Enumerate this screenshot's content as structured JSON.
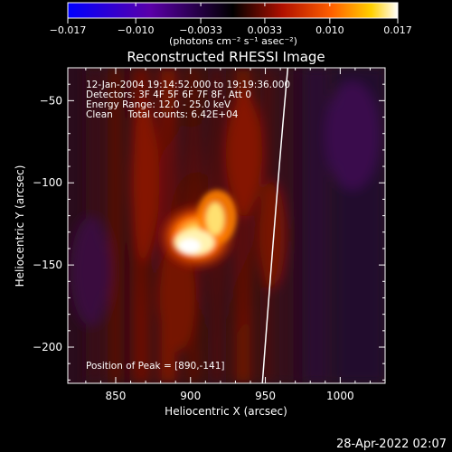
{
  "colorbar": {
    "tick_labels": [
      "−0.017",
      "−0.010",
      "−0.0033",
      "0.0033",
      "0.010",
      "0.017"
    ],
    "ticks": [
      -0.017,
      -0.01,
      -0.0033,
      0.0033,
      0.01,
      0.017
    ],
    "range": [
      -0.017,
      0.017
    ],
    "unit_label": "(photons cm⁻² s⁻¹ asec⁻²)",
    "colors": [
      "#0000ff",
      "#5a00a8",
      "#000000",
      "#b01000",
      "#ff6000",
      "#ffd000",
      "#ffffff"
    ]
  },
  "chart_data": {
    "type": "heatmap",
    "title": "Reconstructed RHESSI Image",
    "xlabel": "Heliocentric X (arcsec)",
    "ylabel": "Heliocentric Y (arcsec)",
    "xlim": [
      818,
      1030
    ],
    "ylim": [
      -222,
      -30
    ],
    "xticks": [
      850,
      900,
      950,
      1000
    ],
    "xtick_labels": [
      "850",
      "900",
      "950",
      "1000"
    ],
    "yticks": [
      -50,
      -100,
      -150,
      -200
    ],
    "ytick_labels": [
      "−50",
      "−100",
      "−150",
      "−200"
    ],
    "info_lines": [
      "12-Jan-2004 19:14:52.000 to 19:19:36.000",
      "Detectors: 3F 4F 5F 6F 7F 8F, Att 0",
      "Energy Range: 12.0 - 25.0 keV",
      "Clean     Total counts: 6.42E+04"
    ],
    "peak_label": "Position of Peak = [890,-141]",
    "peak": [
      890,
      -141
    ],
    "limb_points": [
      [
        965,
        -30
      ],
      [
        958,
        -100
      ],
      [
        948,
        -222
      ]
    ]
  },
  "footer": {
    "date": "28-Apr-2022 02:07"
  }
}
